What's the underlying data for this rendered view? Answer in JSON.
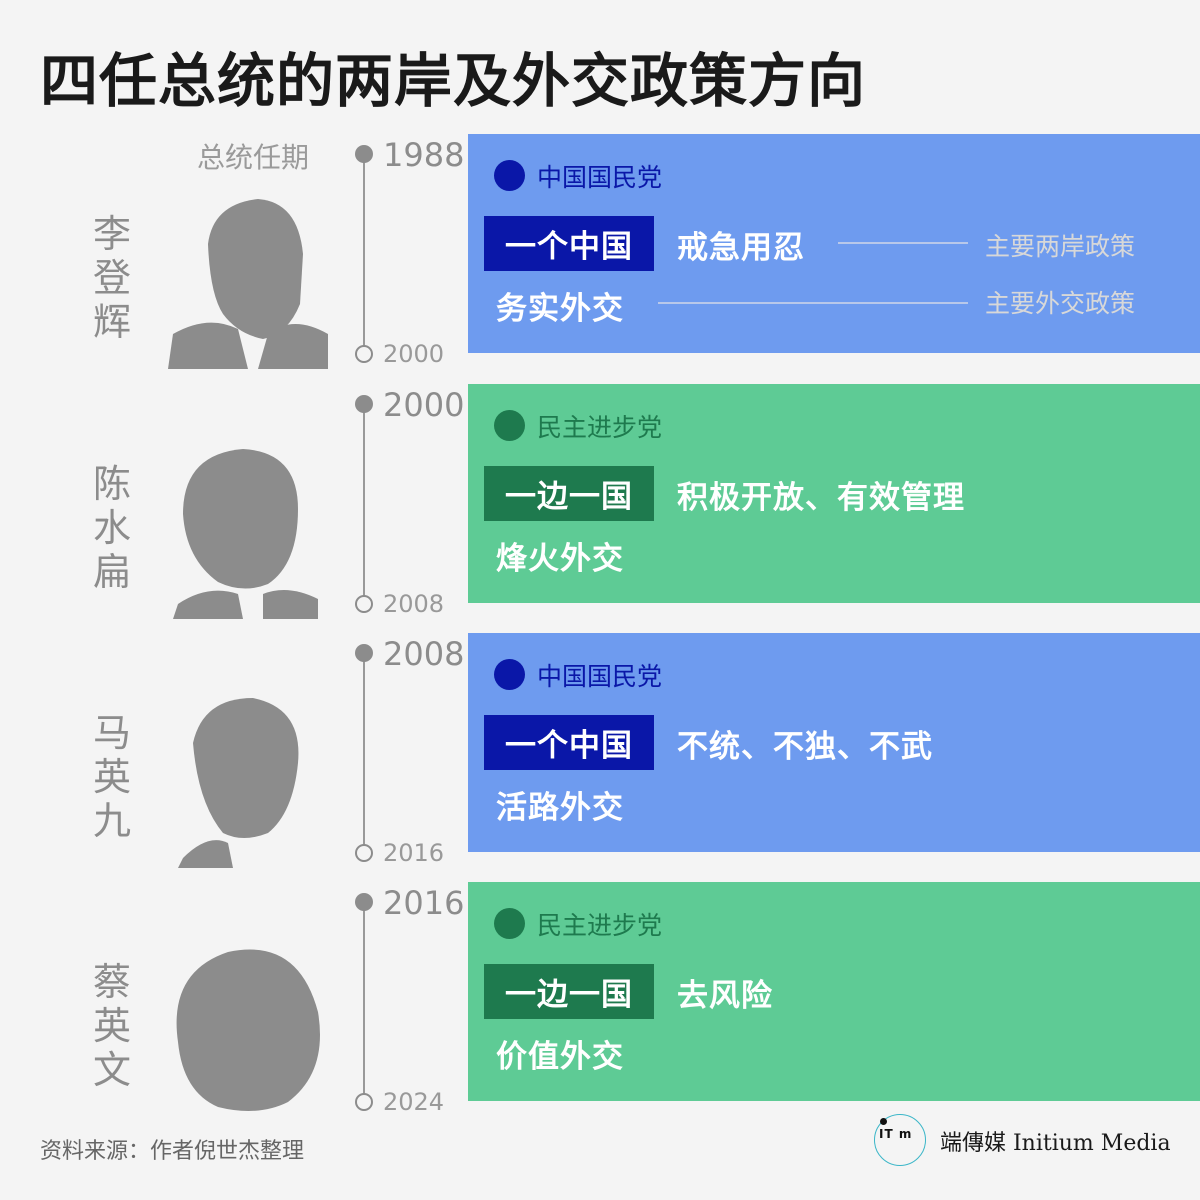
{
  "title": "四任总统的两岸及外交政策方向",
  "term_label": "总统任期",
  "legend": {
    "cross_strait": "主要两岸政策",
    "foreign": "主要外交政策"
  },
  "colors": {
    "kmt_panel": "#6e9bef",
    "kmt_dark": "#0a17a8",
    "dpp_panel": "#5ecb95",
    "dpp_dark": "#1e7a4e"
  },
  "presidents": [
    {
      "name": [
        "李",
        "登",
        "辉"
      ],
      "start": "1988",
      "end": "2000",
      "party": "中国国民党",
      "tag": "一个中国",
      "policy": "戒急用忍",
      "foreign": "务实外交"
    },
    {
      "name": [
        "陈",
        "水",
        "扁"
      ],
      "start": "2000",
      "end": "2008",
      "party": "民主进步党",
      "tag": "一边一国",
      "policy": "积极开放、有效管理",
      "foreign": "烽火外交"
    },
    {
      "name": [
        "马",
        "英",
        "九"
      ],
      "start": "2008",
      "end": "2016",
      "party": "中国国民党",
      "tag": "一个中国",
      "policy": "不统、不独、不武",
      "foreign": "活路外交"
    },
    {
      "name": [
        "蔡",
        "英",
        "文"
      ],
      "start": "2016",
      "end": "2024",
      "party": "民主进步党",
      "tag": "一边一国",
      "policy": "去风险",
      "foreign": "价值外交"
    }
  ],
  "source": "资料来源：作者倪世杰整理",
  "brand": {
    "logo_icon": "initium-logo-icon",
    "name": "端傳媒 Initium Media"
  }
}
